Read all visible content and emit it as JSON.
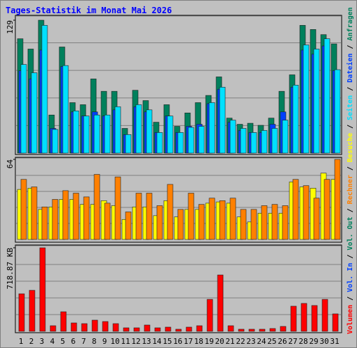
{
  "chart_data": {
    "type": "bar",
    "title": "Tages-Statistik im Monat Mai 2026",
    "categories": [
      "1",
      "2",
      "3",
      "4",
      "5",
      "6",
      "7",
      "8",
      "9",
      "10",
      "11",
      "12",
      "13",
      "14",
      "15",
      "16",
      "17",
      "18",
      "19",
      "20",
      "21",
      "22",
      "23",
      "24",
      "25",
      "26",
      "27",
      "28",
      "29",
      "30",
      "31"
    ],
    "weekend_indices": [
      1,
      2,
      8,
      9,
      15,
      16,
      22,
      23,
      29,
      30
    ],
    "weekend_color": "#00805c",
    "panels": [
      {
        "ylim": [
          0,
          129
        ],
        "yticks": [
          129
        ],
        "series": [
          {
            "name": "Anfragen",
            "color": "#00805c",
            "values": [
              111,
              101,
              129,
              37,
              103,
              49,
              47,
              72,
              60,
              60,
              24,
              61,
              51,
              30,
              47,
              26,
              39,
              49,
              56,
              74,
              34,
              28,
              29,
              27,
              34,
              60,
              76,
              124,
              120,
              115,
              106
            ]
          },
          {
            "name": "Dateien",
            "color": "#0040ff",
            "values": [
              80,
              72,
              100,
              24,
              84,
              40,
              36,
              40,
              36,
              42,
              18,
              45,
              40,
              20,
              36,
              20,
              26,
              28,
              48,
              62,
              30,
              22,
              20,
              20,
              28,
              40,
              64,
              100,
              96,
              104,
              80
            ]
          },
          {
            "name": "Seiten",
            "color": "#00e0ff",
            "values": [
              86,
              78,
              124,
              23,
              85,
              41,
              36,
              37,
              37,
              45,
              18,
              47,
              42,
              20,
              36,
              20,
              25,
              26,
              49,
              64,
              32,
              24,
              20,
              22,
              24,
              32,
              66,
              105,
              101,
              111,
              81
            ]
          }
        ]
      },
      {
        "ylim": [
          0,
          64
        ],
        "yticks": [
          64
        ],
        "series": [
          {
            "name": "Besuche",
            "color": "#ffff00",
            "values": [
              40,
              41,
              24,
              26,
              32,
              32,
              28,
              28,
              31,
              27,
              16,
              26,
              26,
              19,
              31,
              18,
              24,
              24,
              29,
              30,
              29,
              18,
              14,
              21,
              21,
              21,
              46,
              42,
              41,
              53,
              48
            ]
          },
          {
            "name": "Rechner",
            "color": "#ff8000",
            "values": [
              48,
              42,
              26,
              32,
              39,
              37,
              34,
              52,
              29,
              50,
              22,
              37,
              37,
              27,
              44,
              24,
              37,
              28,
              33,
              31,
              33,
              24,
              24,
              27,
              28,
              27,
              48,
              43,
              33,
              48,
              64
            ]
          }
        ]
      },
      {
        "ylim": [
          0,
          718.87
        ],
        "yticks": [
          {
            "value": 718.87,
            "label": "718.87 KB"
          }
        ],
        "series": [
          {
            "name": "Volumen",
            "color": "#ff0000",
            "values": [
              323,
              353,
              718.87,
              48,
              168,
              72,
              66,
              96,
              84,
              66,
              30,
              30,
              54,
              30,
              36,
              18,
              36,
              48,
              275,
              485,
              48,
              18,
              18,
              18,
              24,
              42,
              216,
              240,
              222,
              275,
              150
            ]
          }
        ],
        "legend_extra": [
          {
            "name": "Vol. In",
            "color": "#0040ff"
          },
          {
            "name": "Vol. Out",
            "color": "#00805c"
          }
        ]
      }
    ]
  }
}
